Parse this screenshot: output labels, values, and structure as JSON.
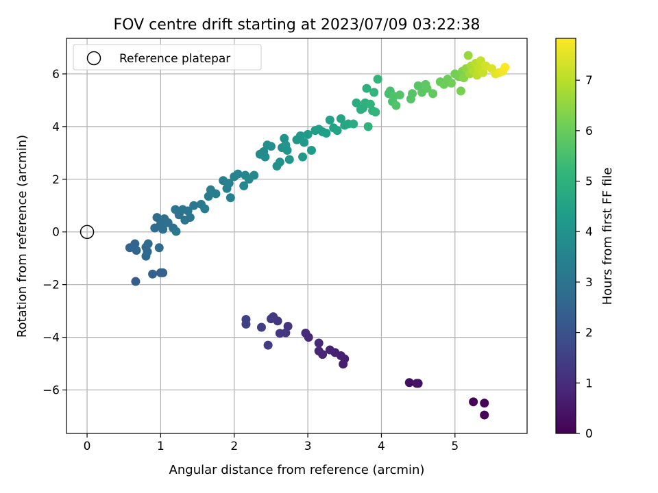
{
  "chart_data": {
    "type": "scatter",
    "title": "FOV centre drift starting at 2023/07/09 03:22:38",
    "xlabel": "Angular distance from reference (arcmin)",
    "ylabel": "Rotation from reference (arcmin)",
    "xlim": [
      -0.28,
      5.98
    ],
    "ylim": [
      -7.65,
      7.35
    ],
    "grid": true,
    "xticks": [
      "0",
      "1",
      "2",
      "3",
      "4",
      "5"
    ],
    "yticks": [
      "−6",
      "−4",
      "−2",
      "0",
      "2",
      "4",
      "6"
    ],
    "legend": {
      "position": "top-left",
      "entries": [
        "Reference platepar"
      ]
    },
    "reference_point": {
      "x": 0,
      "y": 0,
      "marker": "open-circle"
    },
    "colorbar": {
      "label": "Hours from first FF file",
      "min": 0,
      "max": 7.83,
      "ticks": [
        "0",
        "1",
        "2",
        "3",
        "4",
        "5",
        "6",
        "7"
      ],
      "colormap": "viridis",
      "colors": [
        "#440154",
        "#482878",
        "#3e4989",
        "#31688e",
        "#26828e",
        "#1f9e89",
        "#35b779",
        "#6ece58",
        "#b5de2b",
        "#fde725"
      ]
    },
    "series": [
      {
        "marker_color_by": "hours",
        "points": [
          [
            5.25,
            -6.45,
            0.05
          ],
          [
            5.4,
            -6.5,
            0.08
          ],
          [
            5.4,
            -6.95,
            0.1
          ],
          [
            4.38,
            -5.72,
            0.3
          ],
          [
            4.48,
            -5.75,
            0.35
          ],
          [
            4.5,
            -5.75,
            0.38
          ],
          [
            3.48,
            -5.02,
            0.65
          ],
          [
            3.5,
            -4.82,
            0.68
          ],
          [
            3.45,
            -4.7,
            0.7
          ],
          [
            3.37,
            -4.58,
            0.73
          ],
          [
            3.3,
            -4.48,
            0.76
          ],
          [
            3.2,
            -4.65,
            0.8
          ],
          [
            3.15,
            -4.52,
            0.83
          ],
          [
            3.15,
            -4.22,
            0.86
          ],
          [
            3.01,
            -4.0,
            0.9
          ],
          [
            2.97,
            -3.84,
            0.93
          ],
          [
            2.73,
            -3.58,
            1.2
          ],
          [
            2.7,
            -3.83,
            1.23
          ],
          [
            2.62,
            -3.85,
            1.26
          ],
          [
            2.59,
            -3.38,
            1.3
          ],
          [
            2.53,
            -3.22,
            1.33
          ],
          [
            2.5,
            -3.3,
            1.36
          ],
          [
            2.46,
            -4.3,
            1.4
          ],
          [
            2.37,
            -3.62,
            1.45
          ],
          [
            2.16,
            -3.32,
            1.5
          ],
          [
            2.16,
            -3.5,
            1.55
          ],
          [
            0.66,
            -1.88,
            2.3
          ],
          [
            0.89,
            -1.6,
            2.35
          ],
          [
            1.0,
            -1.55,
            2.4
          ],
          [
            1.03,
            -1.55,
            2.43
          ],
          [
            0.58,
            -0.6,
            2.5
          ],
          [
            0.65,
            -0.45,
            2.53
          ],
          [
            0.67,
            -0.7,
            2.56
          ],
          [
            0.8,
            -0.58,
            2.6
          ],
          [
            0.82,
            -0.75,
            2.62
          ],
          [
            0.8,
            -0.92,
            2.65
          ],
          [
            0.83,
            -0.45,
            2.68
          ],
          [
            0.98,
            -0.6,
            2.7
          ],
          [
            0.92,
            0.15,
            2.75
          ],
          [
            0.95,
            0.55,
            2.78
          ],
          [
            1.0,
            0.3,
            2.8
          ],
          [
            1.03,
            0.1,
            2.82
          ],
          [
            1.05,
            0.5,
            2.85
          ],
          [
            1.1,
            0.35,
            2.88
          ],
          [
            1.17,
            0.15,
            2.9
          ],
          [
            1.2,
            0.85,
            2.93
          ],
          [
            1.25,
            0.65,
            2.96
          ],
          [
            1.3,
            0.85,
            3.0
          ],
          [
            1.33,
            0.45,
            3.02
          ],
          [
            1.37,
            0.8,
            3.05
          ],
          [
            1.4,
            0.55,
            3.08
          ],
          [
            1.45,
            1.0,
            3.1
          ],
          [
            1.21,
            0.02,
            3.12
          ],
          [
            1.55,
            1.05,
            3.2
          ],
          [
            1.6,
            0.88,
            3.23
          ],
          [
            1.65,
            1.35,
            3.26
          ],
          [
            1.68,
            1.6,
            3.3
          ],
          [
            1.75,
            1.45,
            3.33
          ],
          [
            1.85,
            1.95,
            3.36
          ],
          [
            1.9,
            1.65,
            3.4
          ],
          [
            1.93,
            1.85,
            3.43
          ],
          [
            1.95,
            1.3,
            3.46
          ],
          [
            2.0,
            2.1,
            3.5
          ],
          [
            2.05,
            2.2,
            3.53
          ],
          [
            2.13,
            1.75,
            3.6
          ],
          [
            2.15,
            2.15,
            3.63
          ],
          [
            2.2,
            2.0,
            3.66
          ],
          [
            2.27,
            2.15,
            3.7
          ],
          [
            2.35,
            2.95,
            3.73
          ],
          [
            2.4,
            3.05,
            3.76
          ],
          [
            2.42,
            2.85,
            3.8
          ],
          [
            2.45,
            3.3,
            3.83
          ],
          [
            2.5,
            3.25,
            3.86
          ],
          [
            2.58,
            2.5,
            3.9
          ],
          [
            2.62,
            2.65,
            3.93
          ],
          [
            2.65,
            3.2,
            3.96
          ],
          [
            2.68,
            3.55,
            4.0
          ],
          [
            2.7,
            3.3,
            4.03
          ],
          [
            2.72,
            3.1,
            4.06
          ],
          [
            2.75,
            2.75,
            4.1
          ],
          [
            2.85,
            3.5,
            4.13
          ],
          [
            2.9,
            3.65,
            4.16
          ],
          [
            2.93,
            2.85,
            4.2
          ],
          [
            2.95,
            3.4,
            4.23
          ],
          [
            3.0,
            3.7,
            4.26
          ],
          [
            3.05,
            3.1,
            4.3
          ],
          [
            3.1,
            3.85,
            4.33
          ],
          [
            3.15,
            3.9,
            4.36
          ],
          [
            3.2,
            3.8,
            4.4
          ],
          [
            3.25,
            3.75,
            4.43
          ],
          [
            3.3,
            4.25,
            4.46
          ],
          [
            3.35,
            3.95,
            4.5
          ],
          [
            3.4,
            3.85,
            4.53
          ],
          [
            3.45,
            4.3,
            4.56
          ],
          [
            3.5,
            4.05,
            4.6
          ],
          [
            3.55,
            4.1,
            4.63
          ],
          [
            3.62,
            4.1,
            4.8
          ],
          [
            3.66,
            4.9,
            4.83
          ],
          [
            3.72,
            4.65,
            4.86
          ],
          [
            3.75,
            4.7,
            4.9
          ],
          [
            3.78,
            4.9,
            4.93
          ],
          [
            3.8,
            5.45,
            4.96
          ],
          [
            3.82,
            4.0,
            5.0
          ],
          [
            3.85,
            4.85,
            5.03
          ],
          [
            3.88,
            4.6,
            5.06
          ],
          [
            3.9,
            5.3,
            5.1
          ],
          [
            3.92,
            4.55,
            5.13
          ],
          [
            3.95,
            5.8,
            5.16
          ],
          [
            4.1,
            5.25,
            5.5
          ],
          [
            4.12,
            5.35,
            5.53
          ],
          [
            4.15,
            4.95,
            5.56
          ],
          [
            4.17,
            5.15,
            5.6
          ],
          [
            4.2,
            4.8,
            5.63
          ],
          [
            4.25,
            5.2,
            5.66
          ],
          [
            4.4,
            5.05,
            5.7
          ],
          [
            4.42,
            5.25,
            5.73
          ],
          [
            4.5,
            5.55,
            5.76
          ],
          [
            4.55,
            5.3,
            5.8
          ],
          [
            4.6,
            5.6,
            5.83
          ],
          [
            4.62,
            5.45,
            5.86
          ],
          [
            4.7,
            5.25,
            5.9
          ],
          [
            4.8,
            5.7,
            6.0
          ],
          [
            4.85,
            5.6,
            6.03
          ],
          [
            4.9,
            5.8,
            6.06
          ],
          [
            4.95,
            5.65,
            6.1
          ],
          [
            5.0,
            6.0,
            6.13
          ],
          [
            5.05,
            5.9,
            6.16
          ],
          [
            5.08,
            5.35,
            6.2
          ],
          [
            5.1,
            6.1,
            6.3
          ],
          [
            5.12,
            5.85,
            6.4
          ],
          [
            5.15,
            6.2,
            6.5
          ],
          [
            5.18,
            6.7,
            6.6
          ],
          [
            5.2,
            6.0,
            6.7
          ],
          [
            5.22,
            6.3,
            6.8
          ],
          [
            5.25,
            6.1,
            6.9
          ],
          [
            5.28,
            6.4,
            7.0
          ],
          [
            5.3,
            5.95,
            7.05
          ],
          [
            5.32,
            6.2,
            7.1
          ],
          [
            5.35,
            6.5,
            7.15
          ],
          [
            5.38,
            6.05,
            7.2
          ],
          [
            5.42,
            6.3,
            7.3
          ],
          [
            5.5,
            6.2,
            7.4
          ],
          [
            5.55,
            6.0,
            7.5
          ],
          [
            5.6,
            6.05,
            7.6
          ],
          [
            5.65,
            6.1,
            7.7
          ],
          [
            5.68,
            6.25,
            7.8
          ]
        ]
      }
    ]
  }
}
